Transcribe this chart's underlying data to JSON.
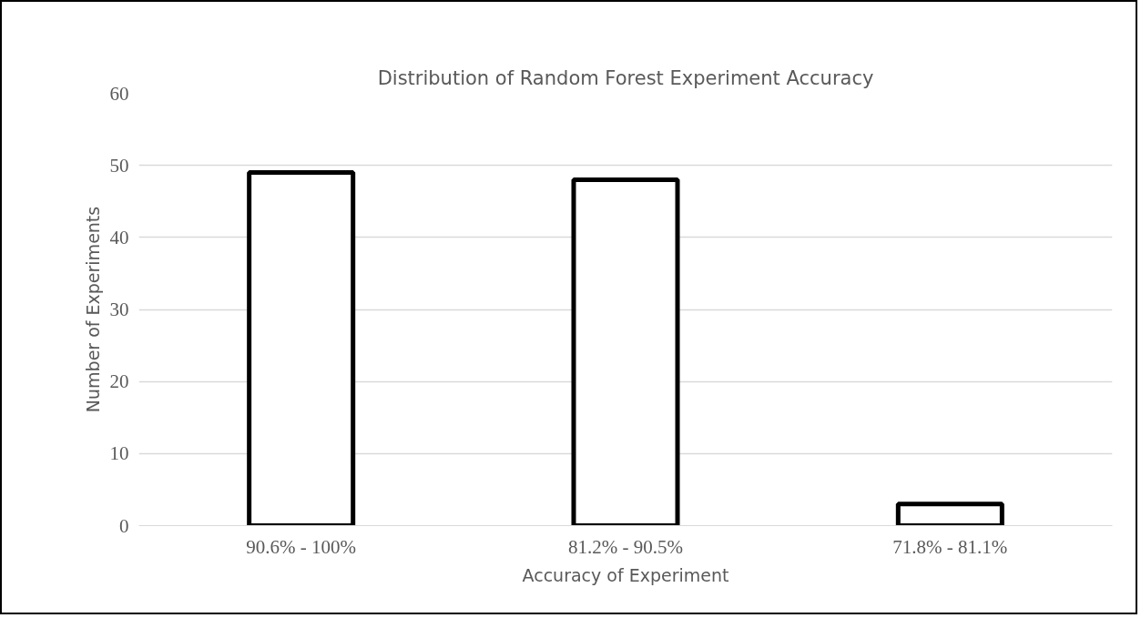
{
  "chart_data": {
    "type": "bar",
    "title": "Distribution of Random Forest Experiment Accuracy",
    "xlabel": "Accuracy of Experiment",
    "ylabel": "Number of Experiments",
    "categories": [
      "90.6% - 100%",
      "81.2% - 90.5%",
      "71.8% - 81.1%"
    ],
    "values": [
      49,
      48,
      3
    ],
    "color": "#ffffff",
    "ylim": [
      0,
      60
    ],
    "yticks": [
      0,
      10,
      20,
      30,
      40,
      50,
      60
    ],
    "grid": "y"
  }
}
